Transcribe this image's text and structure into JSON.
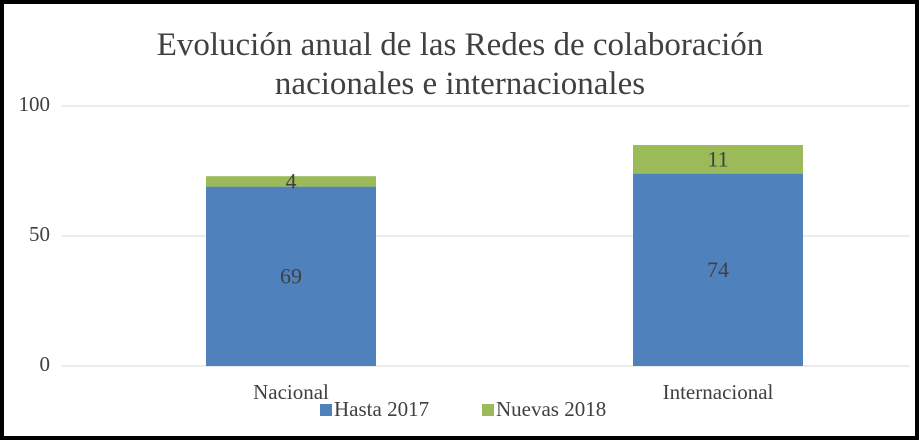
{
  "chart_data": {
    "type": "stacked_bar",
    "title": "Evolución anual de las Redes de colaboración nacionales e internacionales",
    "categories": [
      "Nacional",
      "Internacional"
    ],
    "series": [
      {
        "name": "Hasta 2017",
        "color": "#4f81bd",
        "values": [
          69,
          74
        ]
      },
      {
        "name": "Nuevas 2018",
        "color": "#9bbb59",
        "values": [
          4,
          11
        ]
      }
    ],
    "ylim": [
      0,
      100
    ],
    "yticks": [
      0,
      50,
      100
    ],
    "grid": true,
    "legend": "bottom"
  }
}
